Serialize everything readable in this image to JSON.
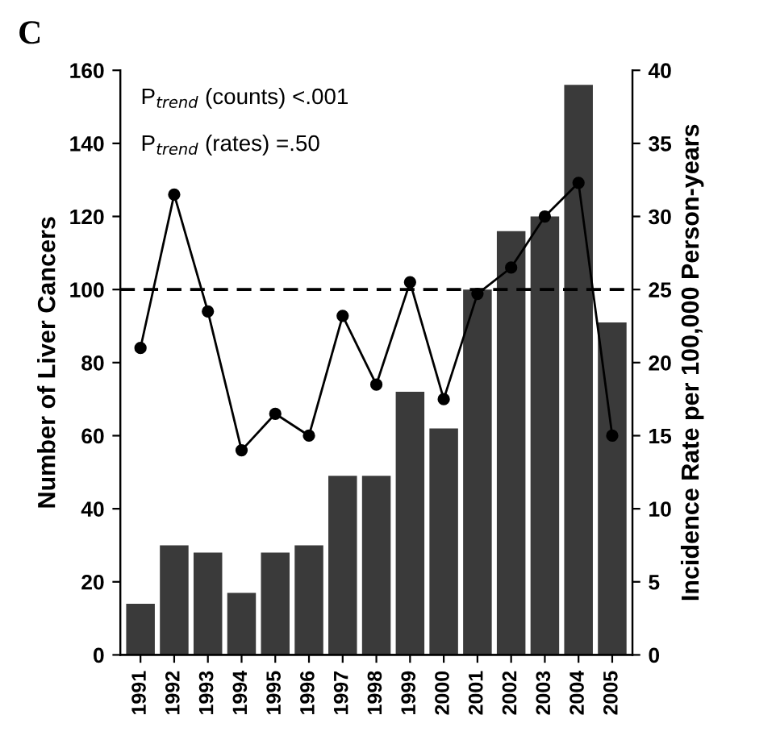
{
  "chart_data": {
    "type": "bar",
    "title": "C",
    "ylabel": "Number of Liver Cancers",
    "y2label": "Incidence Rate per 100,000 Person-years",
    "categories": [
      "1991",
      "1992",
      "1993",
      "1994",
      "1995",
      "1996",
      "1997",
      "1998",
      "1999",
      "2000",
      "2001",
      "2002",
      "2003",
      "2004",
      "2005"
    ],
    "series": [
      {
        "color": "#3a3a3a",
        "values": [
          14,
          30,
          28,
          17,
          28,
          30,
          49,
          49,
          72,
          62,
          100,
          116,
          120,
          156,
          91
        ]
      },
      {
        "type": "line",
        "axis": "y2",
        "color": "#000000",
        "marker": "circle",
        "line_style": "solid",
        "values": [
          21,
          31.5,
          23.5,
          14,
          16.5,
          15,
          23.2,
          18.5,
          25.5,
          17.5,
          24.7,
          26.5,
          30,
          32.3,
          15
        ]
      }
    ],
    "ylim": [
      0,
      160
    ],
    "yticks": [
      0,
      20,
      40,
      60,
      80,
      100,
      120,
      140,
      160
    ],
    "y2lim": [
      0,
      40
    ],
    "y2ticks": [
      0,
      5,
      10,
      15,
      20,
      25,
      30,
      35,
      40
    ],
    "ref_lines": [
      {
        "axis": "y",
        "value": 100,
        "color": "#000000",
        "line_style": "dashed"
      }
    ],
    "annotations": [
      "P$_{trend}$ (counts) <.001",
      "P$_{trend}$ (rates) =.50"
    ],
    "grid": false,
    "legend": false
  }
}
